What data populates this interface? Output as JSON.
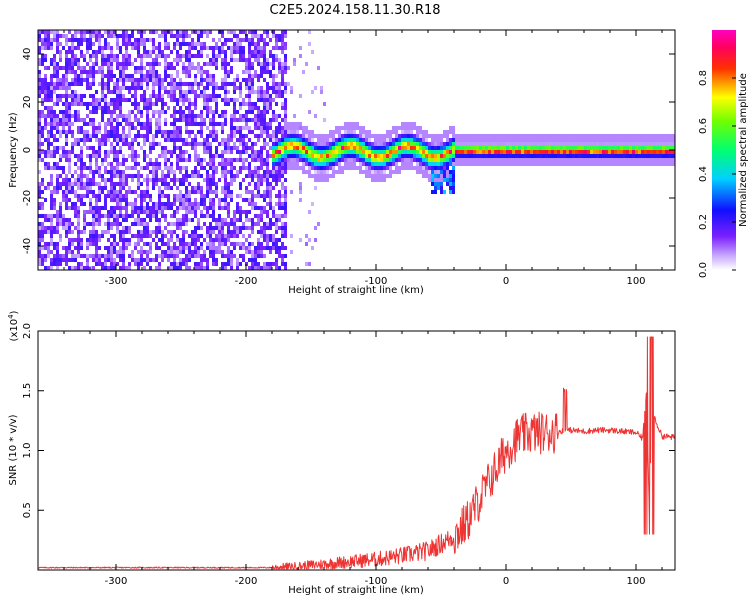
{
  "title": "C2E5.2024.158.11.30.R18",
  "chart_data": [
    {
      "type": "heatmap",
      "xlabel": "Height of straight line (km)",
      "ylabel": "Frequency (Hz)",
      "xlim": [
        -360,
        130
      ],
      "ylim": [
        -50,
        50
      ],
      "xticks": [
        -300,
        -200,
        -100,
        0,
        100
      ],
      "yticks": [
        -40,
        -20,
        0,
        20,
        40
      ],
      "colorbar": {
        "label": "Normalized spectral amplitude",
        "range": [
          0,
          1
        ],
        "ticks": [
          0.0,
          0.2,
          0.4,
          0.6,
          0.8
        ],
        "tick_labels": [
          "0.0",
          "0.2",
          "0.4",
          "0.6",
          "0.8"
        ],
        "colormap": "rainbow (white-violet-blue-cyan-green-yellow-red-magenta)"
      },
      "features": [
        {
          "description": "broadband noise",
          "x_range": [
            -360,
            -170
          ],
          "y_range": [
            -50,
            50
          ],
          "amplitude": 0.15
        },
        {
          "description": "signal band near 0 Hz",
          "x_range": [
            -180,
            130
          ],
          "center_freq": 0,
          "amplitude_range": [
            0.4,
            0.95
          ]
        }
      ]
    },
    {
      "type": "line",
      "xlabel": "Height of straight line (km)",
      "ylabel": "SNR (10 * v/v)",
      "y_multiplier": "(x10",
      "y_multiplier_exp": "4",
      "y_multiplier_close": ")",
      "xlim": [
        -360,
        130
      ],
      "ylim": [
        0,
        2.0
      ],
      "xticks": [
        -300,
        -200,
        -100,
        0,
        100
      ],
      "yticks": [
        0.5,
        1.0,
        1.5,
        2.0
      ],
      "ytick_labels": [
        "0.5",
        "1.0",
        "1.5",
        "2.0"
      ],
      "color": "#ee3333",
      "series": [
        {
          "x": [
            -360,
            -300,
            -250,
            -200,
            -180,
            -160,
            -140,
            -120,
            -100,
            -80,
            -60,
            -50,
            -40,
            -30,
            -20,
            -10,
            0,
            10,
            20,
            30,
            40,
            50,
            60,
            70,
            80,
            90,
            100,
            105,
            108,
            110,
            113,
            120,
            130
          ],
          "values": [
            0.02,
            0.02,
            0.02,
            0.02,
            0.02,
            0.03,
            0.05,
            0.07,
            0.09,
            0.12,
            0.16,
            0.22,
            0.28,
            0.4,
            0.6,
            0.8,
            1.0,
            1.12,
            1.15,
            1.15,
            1.16,
            1.17,
            1.16,
            1.17,
            1.17,
            1.16,
            1.15,
            1.1,
            1.5,
            0.6,
            1.3,
            1.12,
            1.11
          ]
        }
      ]
    }
  ]
}
